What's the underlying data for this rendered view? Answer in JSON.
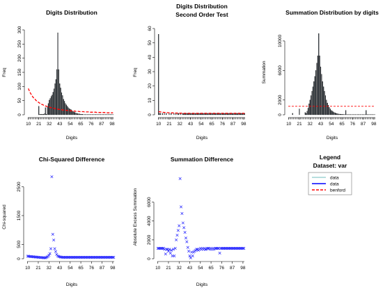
{
  "colors": {
    "bar": "#2b3640",
    "benford": "#ff0000",
    "cross": "#2424ff",
    "data1": "#9fd3d3",
    "data2": "#0000ff"
  },
  "legend": {
    "title": "Legend",
    "subtitle": "Dataset: var",
    "entries": [
      "data",
      "data",
      "benford"
    ]
  },
  "chart_data": [
    {
      "type": "bar",
      "title": "Digits Distribution",
      "xlabel": "Digits",
      "ylabel": "Freq",
      "xticks": [
        "10",
        "21",
        "32",
        "43",
        "54",
        "65",
        "76",
        "87",
        "98"
      ],
      "yticks": [
        0,
        50,
        100,
        150,
        200,
        250,
        300
      ],
      "ylim": [
        0,
        300
      ],
      "categories_range": [
        10,
        99
      ],
      "values": [
        0,
        0,
        0,
        0,
        0,
        0,
        0,
        0,
        0,
        0,
        0,
        30,
        2,
        2,
        2,
        2,
        2,
        4,
        25,
        2,
        30,
        40,
        52,
        58,
        65,
        70,
        80,
        92,
        110,
        125,
        160,
        290,
        160,
        110,
        95,
        78,
        68,
        55,
        48,
        40,
        35,
        30,
        25,
        22,
        20,
        18,
        15,
        12,
        10,
        8,
        6,
        5,
        4,
        3,
        3,
        2,
        2,
        2,
        1,
        1,
        1,
        1,
        1,
        1,
        1,
        1,
        1,
        1,
        1,
        1,
        1,
        1,
        1,
        1,
        1,
        1,
        1,
        1,
        1,
        1,
        1,
        1,
        1,
        1,
        1,
        1,
        1,
        1,
        1,
        1
      ],
      "benford_curve": [
        93,
        85,
        78,
        72,
        67,
        62,
        58,
        55,
        51,
        48,
        46,
        43,
        41,
        39,
        37,
        36,
        34,
        33,
        31,
        30,
        29,
        28,
        27,
        26,
        25,
        24,
        23,
        23,
        22,
        21,
        21,
        20,
        19,
        19,
        18,
        18,
        17,
        17,
        16,
        16,
        16,
        15,
        15,
        14,
        14,
        14,
        13,
        13,
        13,
        13,
        12,
        12,
        12,
        12,
        11,
        11,
        11,
        11,
        11,
        10,
        10,
        10,
        10,
        10,
        10,
        9,
        9,
        9,
        9,
        9,
        9,
        9,
        8,
        8,
        8,
        8,
        8,
        8,
        8,
        8,
        8,
        7,
        7,
        7,
        7,
        7,
        7,
        7,
        7,
        7
      ]
    },
    {
      "type": "bar",
      "title": "Digits Distribution",
      "subtitle": "Second Order Test",
      "xlabel": "Digits",
      "ylabel": "Freq",
      "xticks": [
        "10",
        "21",
        "32",
        "43",
        "54",
        "65",
        "76",
        "87",
        "98"
      ],
      "yticks": [
        0,
        10,
        20,
        30,
        40,
        50,
        60
      ],
      "ylim": [
        0,
        60
      ],
      "categories_range": [
        10,
        99
      ],
      "values": [
        56,
        1,
        1,
        0,
        1,
        0,
        1,
        0,
        1,
        0,
        0,
        1,
        0,
        1,
        0,
        0,
        1,
        0,
        1,
        0,
        1,
        1,
        0,
        1,
        0,
        1,
        1,
        1,
        1,
        1,
        1,
        1,
        1,
        1,
        1,
        1,
        1,
        1,
        1,
        1,
        1,
        1,
        1,
        1,
        1,
        1,
        1,
        1,
        1,
        1,
        1,
        1,
        1,
        1,
        1,
        1,
        1,
        1,
        1,
        1,
        1,
        1,
        1,
        1,
        1,
        1,
        1,
        1,
        1,
        1,
        1,
        1,
        1,
        1,
        1,
        1,
        1,
        1,
        1,
        1,
        1,
        1,
        1,
        1,
        1,
        1,
        1,
        1,
        1,
        1
      ],
      "benford_curve": [
        2.2,
        2.1,
        2.0,
        1.9,
        1.8,
        1.7,
        1.6,
        1.6,
        1.5,
        1.5,
        1.4,
        1.4,
        1.4,
        1.3,
        1.3,
        1.3,
        1.2,
        1.2,
        1.2,
        1.2,
        1.1,
        1.1,
        1.1,
        1.1,
        1.1,
        1.1,
        1.0,
        1.0,
        1.0,
        1.0,
        1.0,
        1.0,
        1.0,
        1.0,
        1.0,
        1.0,
        1.0,
        1.0,
        1.0,
        1.0,
        1.0,
        1.0,
        1.0,
        1.0,
        1.0,
        1.0,
        1.0,
        1.0,
        1.0,
        1.0,
        1.0,
        1.0,
        1.0,
        1.0,
        1.0,
        1.0,
        1.0,
        1.0,
        1.0,
        1.0,
        1.0,
        1.0,
        1.0,
        1.0,
        1.0,
        1.0,
        1.0,
        1.0,
        1.0,
        1.0,
        1.0,
        1.0,
        1.0,
        1.0,
        1.0,
        1.0,
        1.0,
        1.0,
        1.0,
        1.0,
        1.0,
        1.0,
        1.0,
        1.0,
        1.0,
        1.0,
        1.0,
        1.0,
        1.0,
        1.0
      ]
    },
    {
      "type": "bar",
      "title": "Summation Distribution by digits",
      "xlabel": "Digits",
      "ylabel": "Summation",
      "xticks": [
        "10",
        "21",
        "32",
        "43",
        "54",
        "65",
        "76",
        "87",
        "98"
      ],
      "yticks": [
        0,
        2000,
        6000,
        10000
      ],
      "ylim": [
        0,
        11500
      ],
      "categories_range": [
        10,
        99
      ],
      "values": [
        0,
        0,
        0,
        0,
        200,
        0,
        0,
        0,
        0,
        0,
        0,
        800,
        0,
        0,
        0,
        0,
        0,
        300,
        200,
        500,
        900,
        1500,
        2000,
        2600,
        3200,
        3800,
        4500,
        5200,
        6000,
        7000,
        8000,
        11000,
        8000,
        6500,
        5500,
        4500,
        3800,
        3200,
        2600,
        2000,
        1600,
        1300,
        1000,
        800,
        600,
        500,
        400,
        300,
        250,
        200,
        150,
        120,
        100,
        90,
        80,
        70,
        60,
        50,
        40,
        600,
        40,
        30,
        30,
        30,
        30,
        30,
        30,
        30,
        30,
        30,
        30,
        30,
        30,
        30,
        30,
        30,
        30,
        30,
        30,
        30,
        600,
        30,
        30,
        30,
        30,
        30,
        30,
        30,
        30,
        30
      ],
      "benford_line": 1150
    },
    {
      "type": "scatter",
      "title": "Chi-Squared Difference",
      "xlabel": "Digits",
      "ylabel": "Chi-squared",
      "xticks": [
        "10",
        "21",
        "32",
        "43",
        "54",
        "65",
        "76",
        "87",
        "98"
      ],
      "yticks": [
        0,
        500,
        1500,
        2500
      ],
      "ylim": [
        0,
        2950
      ],
      "x_range": [
        10,
        99
      ],
      "values": [
        90,
        85,
        80,
        78,
        75,
        70,
        68,
        65,
        60,
        58,
        55,
        50,
        48,
        45,
        42,
        40,
        38,
        35,
        30,
        40,
        60,
        80,
        120,
        180,
        350,
        2850,
        850,
        650,
        350,
        250,
        150,
        100,
        80,
        70,
        60,
        55,
        50,
        50,
        50,
        50,
        50,
        50,
        50,
        50,
        50,
        50,
        50,
        50,
        50,
        50,
        50,
        50,
        50,
        50,
        50,
        50,
        50,
        50,
        50,
        50,
        50,
        50,
        50,
        50,
        50,
        50,
        50,
        50,
        50,
        50,
        50,
        50,
        50,
        50,
        50,
        50,
        50,
        50,
        50,
        50,
        50,
        50,
        50,
        50,
        50,
        50,
        50,
        50,
        50,
        50
      ]
    },
    {
      "type": "scatter",
      "title": "Summation Difference",
      "xlabel": "Digits",
      "ylabel": "Absolute Excess Summation",
      "xticks": [
        "10",
        "21",
        "32",
        "43",
        "54",
        "65",
        "76",
        "87",
        "98"
      ],
      "yticks": [
        0,
        2000,
        4000,
        6000
      ],
      "ylim": [
        0,
        9000
      ],
      "x_range": [
        10,
        99
      ],
      "values": [
        1100,
        1100,
        1100,
        1100,
        1100,
        1100,
        1100,
        1000,
        500,
        1000,
        1000,
        800,
        1000,
        600,
        900,
        300,
        1000,
        300,
        1100,
        2000,
        2500,
        3000,
        3500,
        8500,
        5500,
        4800,
        3800,
        3300,
        2800,
        2200,
        1800,
        1200,
        800,
        300,
        100,
        700,
        300,
        700,
        800,
        900,
        1000,
        1000,
        900,
        1000,
        1100,
        1000,
        1100,
        1000,
        1100,
        1000,
        1000,
        1100,
        1100,
        1100,
        1000,
        1100,
        1000,
        1100,
        1000,
        1100,
        1100,
        1100,
        1100,
        1100,
        600,
        1100,
        1100,
        1100,
        1100,
        1100,
        1100,
        1100,
        1100,
        1100,
        1100,
        1100,
        1100,
        1100,
        1100,
        1100,
        1100,
        1100,
        1100,
        1100,
        1100,
        1100,
        1100,
        1100,
        1100,
        1100
      ]
    }
  ]
}
